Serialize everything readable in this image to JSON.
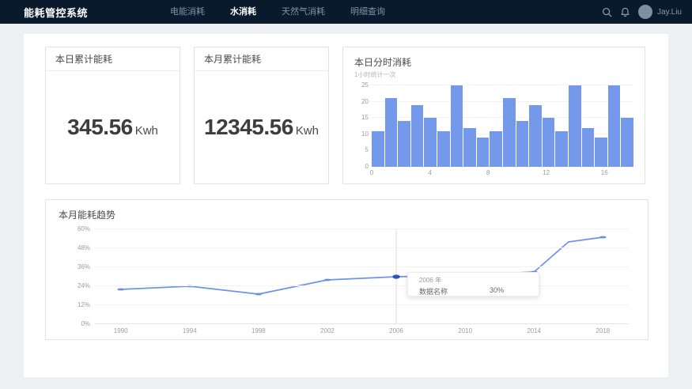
{
  "nav": {
    "logo": "能耗管控系统",
    "items": [
      {
        "label": "电能消耗",
        "active": false
      },
      {
        "label": "水消耗",
        "active": true
      },
      {
        "label": "天然气消耗",
        "active": false
      },
      {
        "label": "明细查询",
        "active": false
      }
    ],
    "user": "Jay.Liu"
  },
  "cards": {
    "daily": {
      "title": "本日累计能耗",
      "value": "345.56",
      "unit": "Kwh"
    },
    "monthly": {
      "title": "本月累计能耗",
      "value": "12345.56",
      "unit": "Kwh"
    }
  },
  "chart_data": [
    {
      "type": "bar",
      "title": "本日分时消耗",
      "subtitle": "1小时统计一次",
      "values": [
        11,
        21,
        14,
        19,
        15,
        11,
        25,
        12,
        9,
        11,
        21,
        14,
        19,
        15,
        11,
        25,
        12,
        9,
        25,
        15
      ],
      "ylim": [
        0,
        25
      ],
      "y_ticks": [
        0,
        5,
        10,
        15,
        20,
        25
      ],
      "x_ticks": [
        0,
        4,
        8,
        12,
        16
      ],
      "x_range": [
        0,
        18
      ],
      "bar_color": "#7499ea",
      "grid": true
    },
    {
      "type": "line",
      "title": "本月能耗趋势",
      "series": [
        {
          "name": "数据名称",
          "x": [
            1990,
            1994,
            1998,
            2002,
            2006,
            2010,
            2014,
            2016,
            2018
          ],
          "values": [
            22,
            24,
            19,
            28,
            30,
            31,
            33,
            52,
            55
          ]
        }
      ],
      "ylim": [
        0,
        60
      ],
      "y_ticks": [
        "0%",
        "12%",
        "24%",
        "36%",
        "48%",
        "60%"
      ],
      "x_ticks": [
        1990,
        1994,
        1998,
        2002,
        2006,
        2010,
        2014,
        2018
      ],
      "x_range": [
        1988.5,
        2019.5
      ],
      "line_color": "#6e94e6",
      "marker_color": "#6a8fe2",
      "highlight": {
        "x": 2006,
        "value": 30,
        "dot_color": "#2b57b8"
      },
      "crosshair_x": 2006,
      "tooltip": {
        "title": "2006 年",
        "label": "数据名称",
        "value": "30%"
      },
      "grid": true,
      "legend": "none"
    }
  ]
}
